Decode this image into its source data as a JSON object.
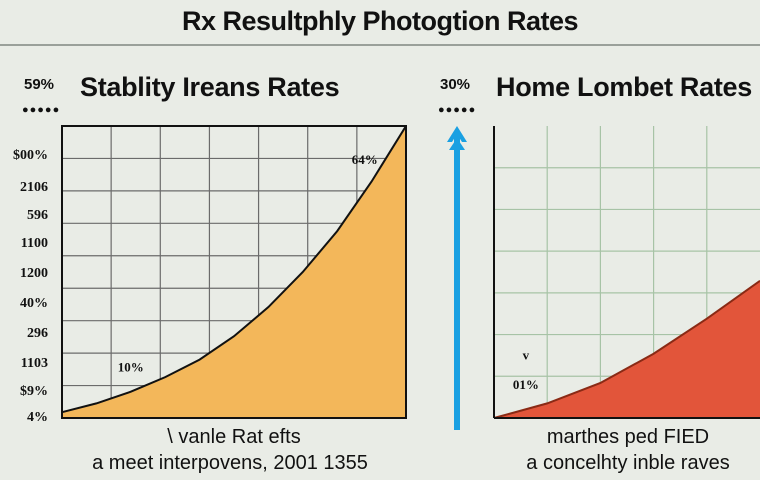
{
  "header": {
    "title": "Rx Resultphly Photogtion Rates"
  },
  "left_panel": {
    "label": "59%",
    "title": "Stablity Ireans Rates",
    "caption_line1": "\\ vanle Rat efts",
    "caption_line2": "a meet interpovens, 2001 1355"
  },
  "right_panel": {
    "label": "30%",
    "title": "Home Lombet Rates",
    "caption_line1": "marthes ped FIED",
    "caption_line2": "a concelhty inble raves"
  },
  "colors": {
    "left_fill": "#f3b75a",
    "right_fill": "#e2553a",
    "arrow": "#1aa0e2",
    "grid": "#6b6b6b",
    "grid_right": "#a7c3a6"
  },
  "chart_data": [
    {
      "type": "area",
      "title": "Stablity Ireans Rates",
      "yticks": [
        "$00%",
        "2106",
        "596",
        "1100",
        "1200",
        "40%",
        "296",
        "1103",
        "$9%",
        "4%"
      ],
      "x": [
        0,
        0.1,
        0.2,
        0.3,
        0.4,
        0.5,
        0.6,
        0.7,
        0.8,
        0.9,
        1.0
      ],
      "y": [
        0.02,
        0.05,
        0.09,
        0.14,
        0.2,
        0.28,
        0.38,
        0.5,
        0.64,
        0.81,
        1.0
      ],
      "annotations": [
        {
          "text": "10%",
          "x": 0.2,
          "y": 0.16
        },
        {
          "text": "64%",
          "x": 0.88,
          "y": 0.87
        }
      ],
      "grid": true
    },
    {
      "type": "area",
      "title": "Home Lombet Rates",
      "x": [
        0,
        0.2,
        0.4,
        0.6,
        0.8,
        1.0
      ],
      "y": [
        0.0,
        0.05,
        0.12,
        0.22,
        0.34,
        0.47
      ],
      "annotations": [
        {
          "text": "01%",
          "x": 0.12,
          "y": 0.1
        },
        {
          "text": "v",
          "x": 0.12,
          "y": 0.2
        }
      ],
      "grid": true
    }
  ]
}
